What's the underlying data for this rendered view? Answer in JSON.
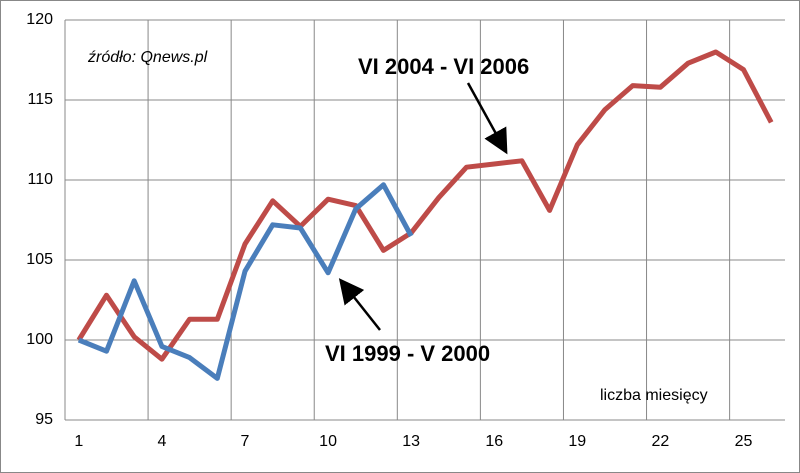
{
  "chart_data": {
    "type": "line",
    "x_label": "liczba miesięcy",
    "source": "źródło: Qnews.pl",
    "annotations": [
      "VI 2004 - VI 2006",
      "VI 1999 - V 2000"
    ],
    "categories": [
      "1",
      null,
      null,
      "4",
      null,
      null,
      "7",
      null,
      null,
      "10",
      null,
      null,
      "13",
      null,
      null,
      "16",
      null,
      null,
      "19",
      null,
      null,
      "22",
      null,
      null,
      "25",
      null
    ],
    "series": [
      {
        "color": "#4a7ebb",
        "values": [
          100,
          99.3,
          103.7,
          99.6,
          98.9,
          97.6,
          104.3,
          107.2,
          107.0,
          104.2,
          108.2,
          109.7,
          106.5,
          null,
          null,
          null,
          null,
          null,
          null,
          null,
          null,
          null,
          null,
          null,
          null,
          null
        ]
      },
      {
        "color": "#be4b48",
        "values": [
          100,
          102.8,
          100.2,
          98.8,
          101.3,
          101.3,
          106.0,
          108.7,
          107.1,
          108.8,
          108.4,
          105.6,
          106.7,
          108.9,
          110.8,
          111.0,
          111.2,
          108.1,
          112.2,
          114.4,
          115.9,
          115.8,
          117.3,
          118.0,
          116.9,
          113.6
        ]
      }
    ],
    "ylim": [
      95,
      120
    ],
    "yticks": [
      95,
      100,
      105,
      110,
      115,
      120
    ],
    "grid": true
  }
}
